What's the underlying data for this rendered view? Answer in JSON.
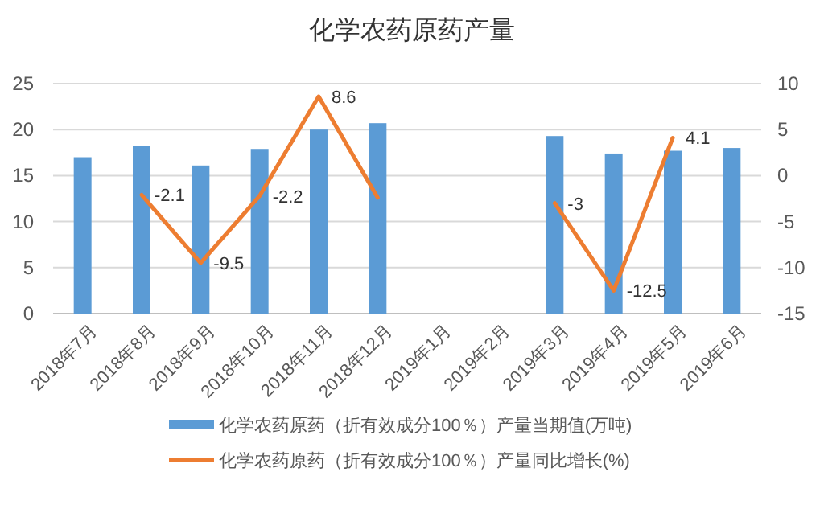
{
  "chart_data": {
    "type": "bar",
    "title": "化学农药原药产量",
    "categories": [
      "2018年7月",
      "2018年8月",
      "2018年9月",
      "2018年10月",
      "2018年11月",
      "2018年12月",
      "2019年1月",
      "2019年2月",
      "2019年3月",
      "2019年4月",
      "2019年5月",
      "2019年6月"
    ],
    "series": [
      {
        "name": "化学农药原药（折有效成分100％）产量当期值(万吨)",
        "color": "#5b9bd5",
        "values": [
          17.0,
          18.2,
          16.1,
          17.9,
          20.0,
          20.7,
          null,
          null,
          19.3,
          17.4,
          17.7,
          18.0
        ]
      },
      {
        "name": "化学农药原药（折有效成分100％）产量同比增长(%)",
        "type": "line",
        "axis": "y2",
        "color": "#ed7d31",
        "values": [
          null,
          -2.1,
          -9.5,
          -2.2,
          8.6,
          -2.4,
          null,
          null,
          -3,
          -12.5,
          4.1,
          null
        ],
        "value_labels": [
          null,
          "-2.1",
          "-9.5",
          "-2.2",
          "8.6",
          null,
          null,
          null,
          "-3",
          "-12.5",
          "4.1",
          null
        ]
      }
    ],
    "ylim": [
      0,
      25
    ],
    "yticks": [
      0,
      5,
      10,
      15,
      20,
      25
    ],
    "y2lim": [
      -15,
      10
    ],
    "y2ticks": [
      -15,
      -10,
      -5,
      0,
      5,
      10
    ],
    "grid": "y",
    "legend": "bottom",
    "marker": "none",
    "line_style": "solid"
  }
}
